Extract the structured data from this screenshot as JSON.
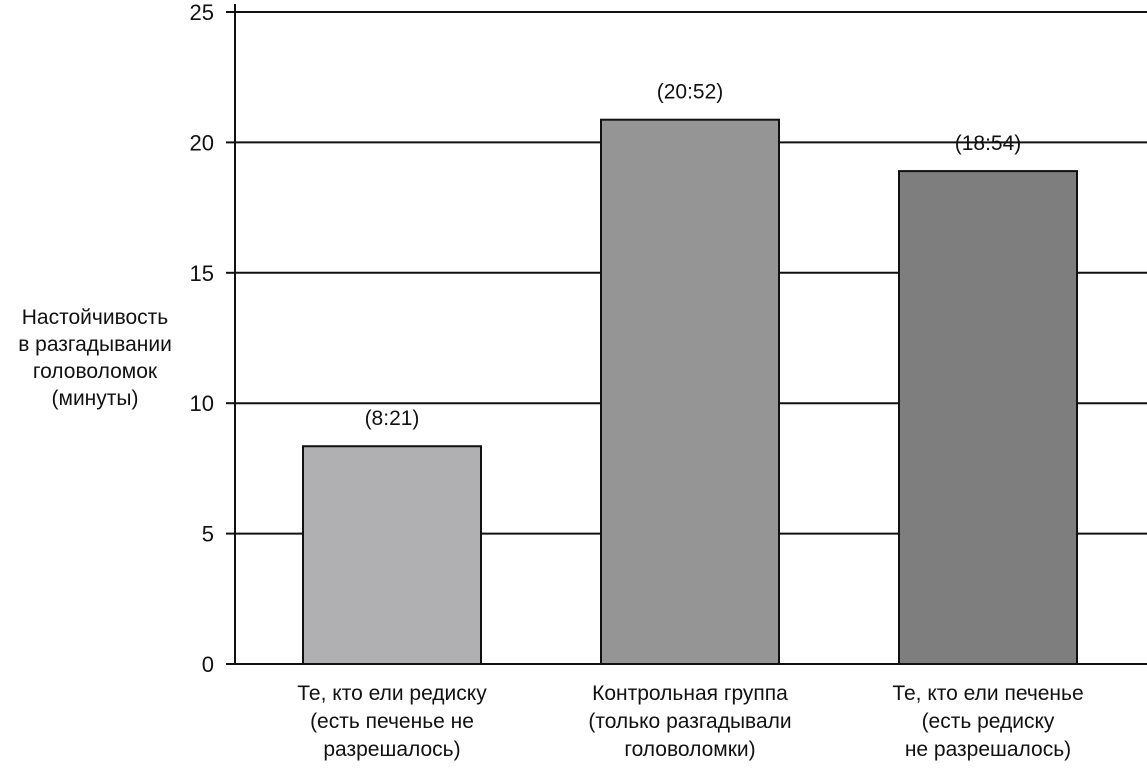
{
  "chart_data": {
    "type": "bar",
    "ylabel": "Настойчивость\nв разгадывании\nголоволомок\n(минуты)",
    "xlabel": "",
    "title": "",
    "ylim": [
      0,
      25
    ],
    "yticks": [
      0,
      5,
      10,
      15,
      20,
      25
    ],
    "grid": true,
    "categories": [
      "Те, кто ели редиску\n(есть печенье не\nразрешалось)",
      "Контрольная группа\n(только разгадывали\nголоволомки)",
      "Те, кто ели печенье\n(есть редиску\nне разрешалось)"
    ],
    "values": [
      8.35,
      20.87,
      18.9
    ],
    "data_labels": [
      "(8:21)",
      "(20:52)",
      "(18:54)"
    ],
    "colors": [
      "#b0b0b2",
      "#959595",
      "#7e7e7e"
    ]
  }
}
